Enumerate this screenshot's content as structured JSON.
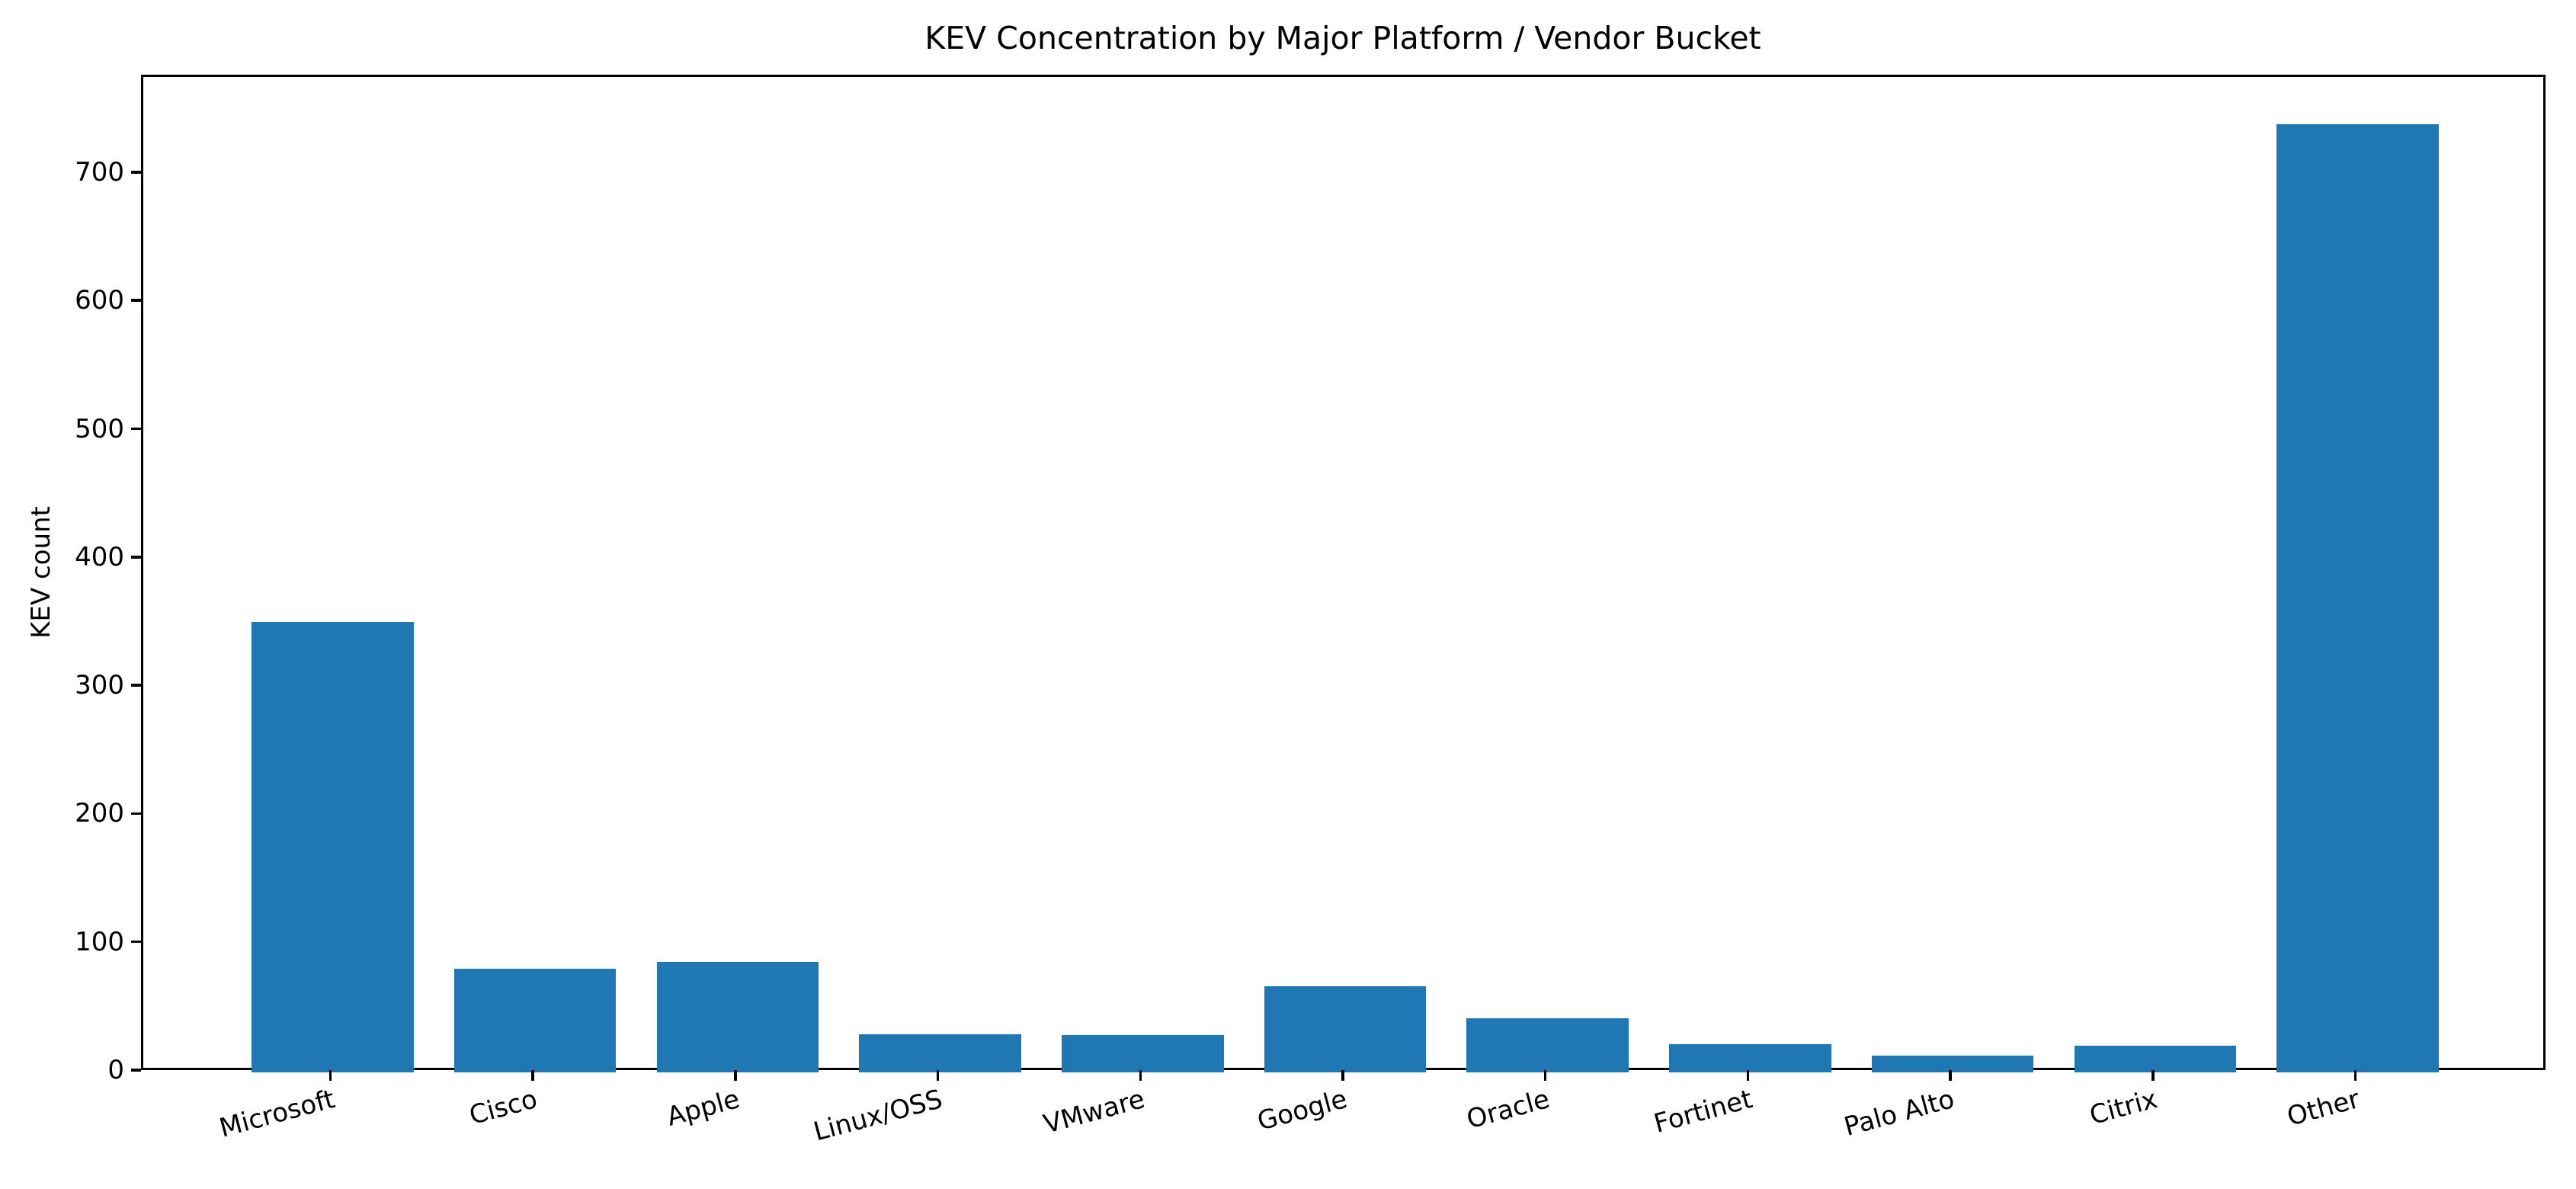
{
  "chart_data": {
    "type": "bar",
    "title": "KEV Concentration by Major Platform / Vendor Bucket",
    "xlabel": "",
    "ylabel": "KEV count",
    "categories": [
      "Microsoft",
      "Cisco",
      "Apple",
      "Linux/OSS",
      "VMware",
      "Google",
      "Oracle",
      "Fortinet",
      "Palo Alto",
      "Citrix",
      "Other"
    ],
    "values": [
      351,
      81,
      86,
      30,
      29,
      67,
      42,
      22,
      13,
      21,
      739
    ],
    "yticks": [
      0,
      100,
      200,
      300,
      400,
      500,
      600,
      700
    ],
    "ylim": [
      0,
      776
    ],
    "bar_color": "#1f77b4",
    "axis_color": "#000000",
    "background_color": "#ffffff",
    "grid": false,
    "legend": "none",
    "x_tick_label_rotation_deg": 15
  }
}
